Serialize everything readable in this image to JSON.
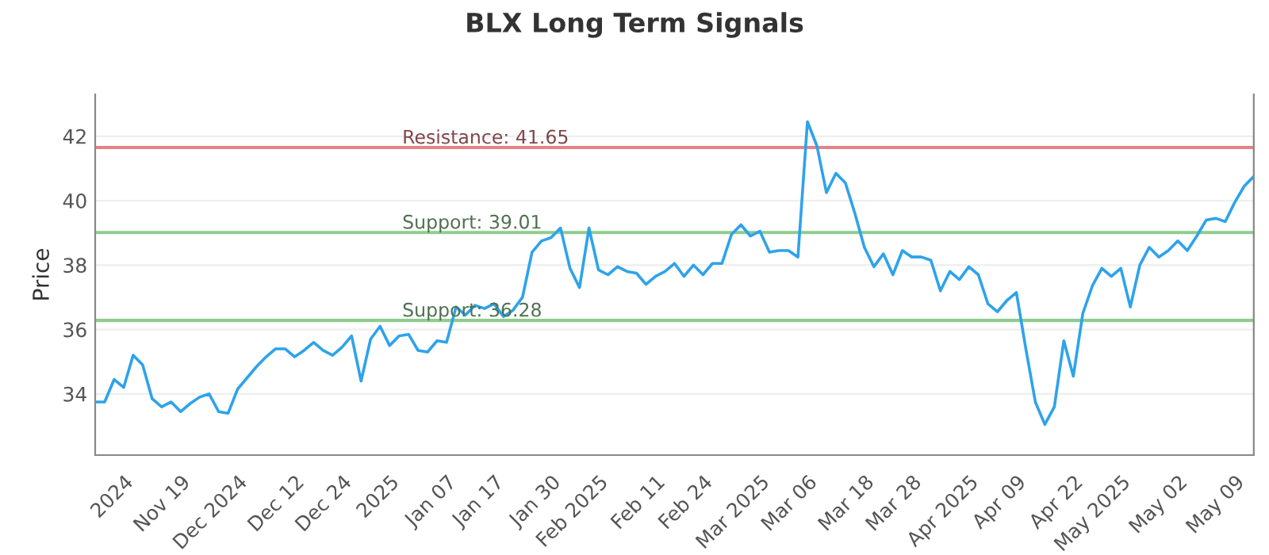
{
  "chart_data": {
    "type": "line",
    "title": "BLX Long Term Signals",
    "ylabel": "Price",
    "categories": [
      null,
      null,
      null,
      "2024",
      null,
      null,
      null,
      null,
      null,
      "Nov 19",
      null,
      null,
      null,
      null,
      null,
      "Dec 2024",
      null,
      null,
      null,
      null,
      null,
      "Dec 12",
      null,
      null,
      null,
      null,
      "Dec 24",
      null,
      null,
      null,
      null,
      "2025",
      null,
      null,
      null,
      null,
      null,
      "Jan 07",
      null,
      null,
      null,
      null,
      "Jan 17",
      null,
      null,
      null,
      null,
      null,
      "Jan 30",
      null,
      null,
      null,
      null,
      "Feb 2025",
      null,
      null,
      null,
      null,
      null,
      "Feb 11",
      null,
      null,
      null,
      null,
      "Feb 24",
      null,
      null,
      null,
      null,
      null,
      "Mar 2025",
      null,
      null,
      null,
      null,
      "Mar 06",
      null,
      null,
      null,
      null,
      null,
      "Mar 18",
      null,
      null,
      null,
      null,
      "Mar 28",
      null,
      null,
      null,
      null,
      null,
      "Apr 2025",
      null,
      null,
      null,
      null,
      "Apr 09",
      null,
      null,
      null,
      null,
      null,
      "Apr 22",
      null,
      null,
      null,
      null,
      "May 2025",
      null,
      null,
      null,
      null,
      null,
      "May 02",
      null,
      null,
      null,
      null,
      null,
      "May 09",
      null,
      null
    ],
    "series": [
      {
        "color": "#2ea3ea",
        "values": [
          33.75,
          33.75,
          34.45,
          34.2,
          35.2,
          34.9,
          33.85,
          33.6,
          33.75,
          33.45,
          33.7,
          33.9,
          34.0,
          33.45,
          33.4,
          34.15,
          34.5,
          34.85,
          35.15,
          35.4,
          35.4,
          35.15,
          35.35,
          35.6,
          35.35,
          35.2,
          35.45,
          35.8,
          34.4,
          35.7,
          36.1,
          35.5,
          35.8,
          35.85,
          35.35,
          35.3,
          35.65,
          35.6,
          36.7,
          36.45,
          36.75,
          36.65,
          36.8,
          36.4,
          36.6,
          37.0,
          38.4,
          38.75,
          38.85,
          39.15,
          37.9,
          37.3,
          39.15,
          37.85,
          37.7,
          37.95,
          37.8,
          37.75,
          37.4,
          37.65,
          37.8,
          38.05,
          37.65,
          38.0,
          37.7,
          38.05,
          38.05,
          38.95,
          39.25,
          38.9,
          39.05,
          38.4,
          38.45,
          38.45,
          38.25,
          42.45,
          41.7,
          40.25,
          40.85,
          40.55,
          39.6,
          38.55,
          37.95,
          38.35,
          37.7,
          38.45,
          38.25,
          38.25,
          38.15,
          37.2,
          37.8,
          37.55,
          37.95,
          37.7,
          36.8,
          36.55,
          36.9,
          37.15,
          35.4,
          33.75,
          33.05,
          33.6,
          35.65,
          34.55,
          36.5,
          37.35,
          37.9,
          37.65,
          37.9,
          36.7,
          38.0,
          38.55,
          38.25,
          38.45,
          38.75,
          38.45,
          38.9,
          39.4,
          39.45,
          39.35,
          39.95,
          40.45,
          40.75
        ]
      }
    ],
    "ylim": [
      32.1,
      43.3
    ],
    "yticks": [
      34,
      36,
      38,
      40,
      42
    ],
    "grid": "y",
    "ref_lines": [
      {
        "axis": "y",
        "value": 41.65,
        "label": "Resistance: 41.65",
        "color": "#e8808a"
      },
      {
        "axis": "y",
        "value": 39.01,
        "label": "Support: 39.01",
        "color": "#8fcc8f"
      },
      {
        "axis": "y",
        "value": 36.28,
        "label": "Support: 36.28",
        "color": "#8fcc8f"
      }
    ]
  }
}
